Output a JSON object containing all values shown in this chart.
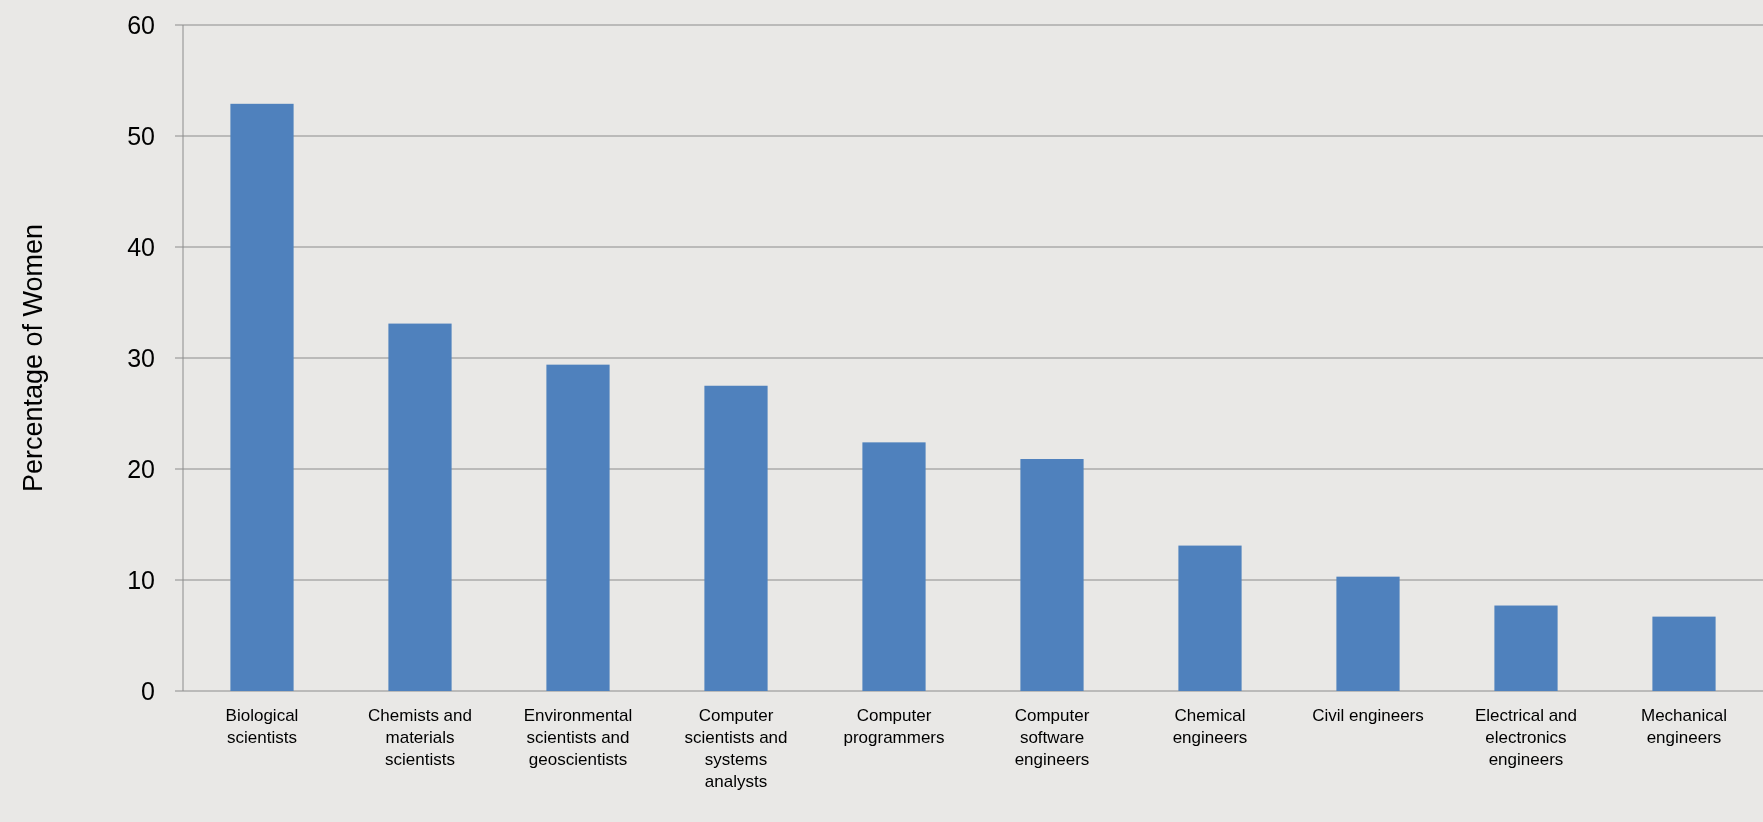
{
  "chart_data": {
    "type": "bar",
    "ylabel": "Percentage of Women",
    "categories": [
      "Biological scientists",
      "Chemists and materials scientists",
      "Environmental scientists and geoscientists",
      "Computer scientists and systems analysts",
      "Computer programmers",
      "Computer software engineers",
      "Chemical engineers",
      "Civil engineers",
      "Electrical and electronics engineers",
      "Mechanical engineers"
    ],
    "values": [
      52.9,
      33.1,
      29.4,
      27.5,
      22.4,
      20.9,
      13.1,
      10.3,
      7.7,
      6.7
    ],
    "color": "#4f81bd",
    "ylim": [
      0,
      60
    ],
    "yticks": [
      0,
      10,
      20,
      30,
      40,
      50,
      60
    ],
    "grid": true
  }
}
